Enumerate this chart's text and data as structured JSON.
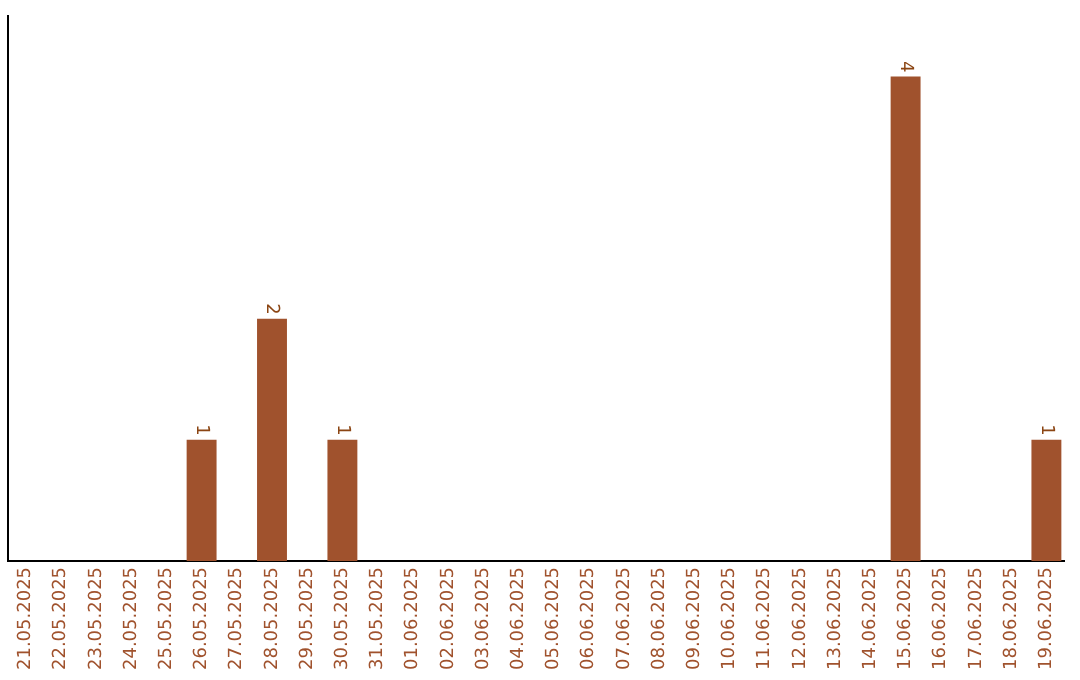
{
  "chart_data": {
    "type": "bar",
    "categories": [
      "21.05.2025",
      "22.05.2025",
      "23.05.2025",
      "24.05.2025",
      "25.05.2025",
      "26.05.2025",
      "27.05.2025",
      "28.05.2025",
      "29.05.2025",
      "30.05.2025",
      "31.05.2025",
      "01.06.2025",
      "02.06.2025",
      "03.06.2025",
      "04.06.2025",
      "05.06.2025",
      "06.06.2025",
      "07.06.2025",
      "08.06.2025",
      "09.06.2025",
      "10.06.2025",
      "11.06.2025",
      "12.06.2025",
      "13.06.2025",
      "14.06.2025",
      "15.06.2025",
      "16.06.2025",
      "17.06.2025",
      "18.06.2025",
      "19.06.2025"
    ],
    "values": [
      0,
      0,
      0,
      0,
      0,
      1,
      0,
      2,
      0,
      1,
      0,
      0,
      0,
      0,
      0,
      0,
      0,
      0,
      0,
      0,
      0,
      0,
      0,
      0,
      0,
      4,
      0,
      0,
      0,
      1
    ],
    "color": "#a0522d",
    "value_labels": [
      null,
      null,
      null,
      null,
      null,
      "1",
      null,
      "2",
      null,
      "1",
      null,
      null,
      null,
      null,
      null,
      null,
      null,
      null,
      null,
      null,
      null,
      null,
      null,
      null,
      null,
      "4",
      null,
      null,
      null,
      "1"
    ],
    "tick_labels": "x"
  }
}
